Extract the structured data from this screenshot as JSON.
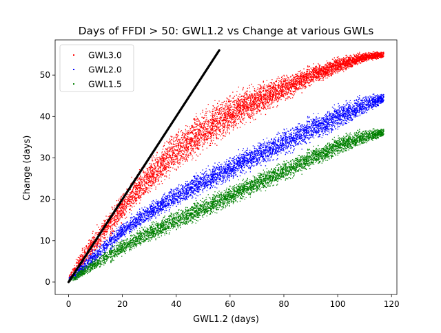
{
  "chart_data": {
    "type": "scatter",
    "title": "Days of FFDI > 50: GWL1.2 vs Change at various GWLs",
    "xlabel": "GWL1.2 (days)",
    "ylabel": "Change (days)",
    "xlim": [
      -5,
      122
    ],
    "ylim": [
      -3,
      58.5
    ],
    "xticks": [
      0,
      20,
      40,
      60,
      80,
      100,
      120
    ],
    "yticks": [
      0,
      10,
      20,
      30,
      40,
      50
    ],
    "grid": false,
    "legend": "top-left",
    "series": [
      {
        "name": "GWL3.0",
        "color": "#ff0000",
        "x": [
          0,
          2,
          5,
          10,
          15,
          20,
          25,
          30,
          35,
          40,
          45,
          50,
          55,
          60,
          65,
          70,
          75,
          80,
          85,
          90,
          95,
          100,
          105,
          110,
          117
        ],
        "y_low": [
          0,
          1,
          2.5,
          6,
          10,
          13.5,
          17,
          20,
          23,
          25.5,
          28,
          30.5,
          32.5,
          35,
          37,
          39,
          41,
          43,
          45,
          47,
          48.5,
          50,
          51.5,
          53,
          54
        ],
        "y_high": [
          2,
          5,
          9,
          14,
          18,
          23,
          27,
          31,
          34.5,
          38,
          40.5,
          43,
          45,
          46.5,
          48,
          49,
          50,
          51,
          52,
          53,
          54,
          55,
          55.5,
          56,
          56
        ]
      },
      {
        "name": "GWL2.0",
        "color": "#0000ff",
        "x": [
          0,
          2,
          5,
          10,
          15,
          20,
          25,
          30,
          35,
          40,
          45,
          50,
          55,
          60,
          65,
          70,
          75,
          80,
          85,
          90,
          95,
          100,
          105,
          110,
          117
        ],
        "y_low": [
          0,
          0.5,
          1.5,
          4,
          7,
          10,
          12,
          14,
          16,
          17.5,
          19.5,
          21,
          22.5,
          24,
          25.5,
          27,
          28.5,
          30,
          31.5,
          33,
          34.5,
          36,
          38,
          40,
          43
        ],
        "y_high": [
          1.5,
          3,
          5.5,
          9,
          12,
          15,
          17.5,
          20,
          22,
          24,
          26,
          28,
          29.5,
          31,
          33,
          34.5,
          36,
          38,
          39.5,
          41,
          42.5,
          44,
          45,
          46,
          46
        ]
      },
      {
        "name": "GWL1.5",
        "color": "#008000",
        "x": [
          0,
          2,
          5,
          10,
          15,
          20,
          25,
          30,
          35,
          40,
          45,
          50,
          55,
          60,
          65,
          70,
          75,
          80,
          85,
          90,
          95,
          100,
          105,
          110,
          117
        ],
        "y_low": [
          0,
          0.3,
          1,
          2.5,
          4,
          6,
          7.5,
          9,
          10.5,
          12,
          13.5,
          15,
          16.5,
          18,
          19.5,
          21,
          22.5,
          24,
          25.5,
          27,
          28.5,
          30,
          31.5,
          33,
          35
        ],
        "y_high": [
          1,
          2,
          4,
          6.5,
          9,
          11,
          13,
          15,
          16.5,
          18,
          19.5,
          21,
          22.5,
          24,
          25.5,
          27,
          28.5,
          30,
          31.5,
          33,
          34.5,
          36,
          37,
          37.5,
          37.5
        ]
      }
    ],
    "reference_line": {
      "color": "#000000",
      "x": [
        0,
        56
      ],
      "y": [
        0,
        56
      ]
    }
  }
}
